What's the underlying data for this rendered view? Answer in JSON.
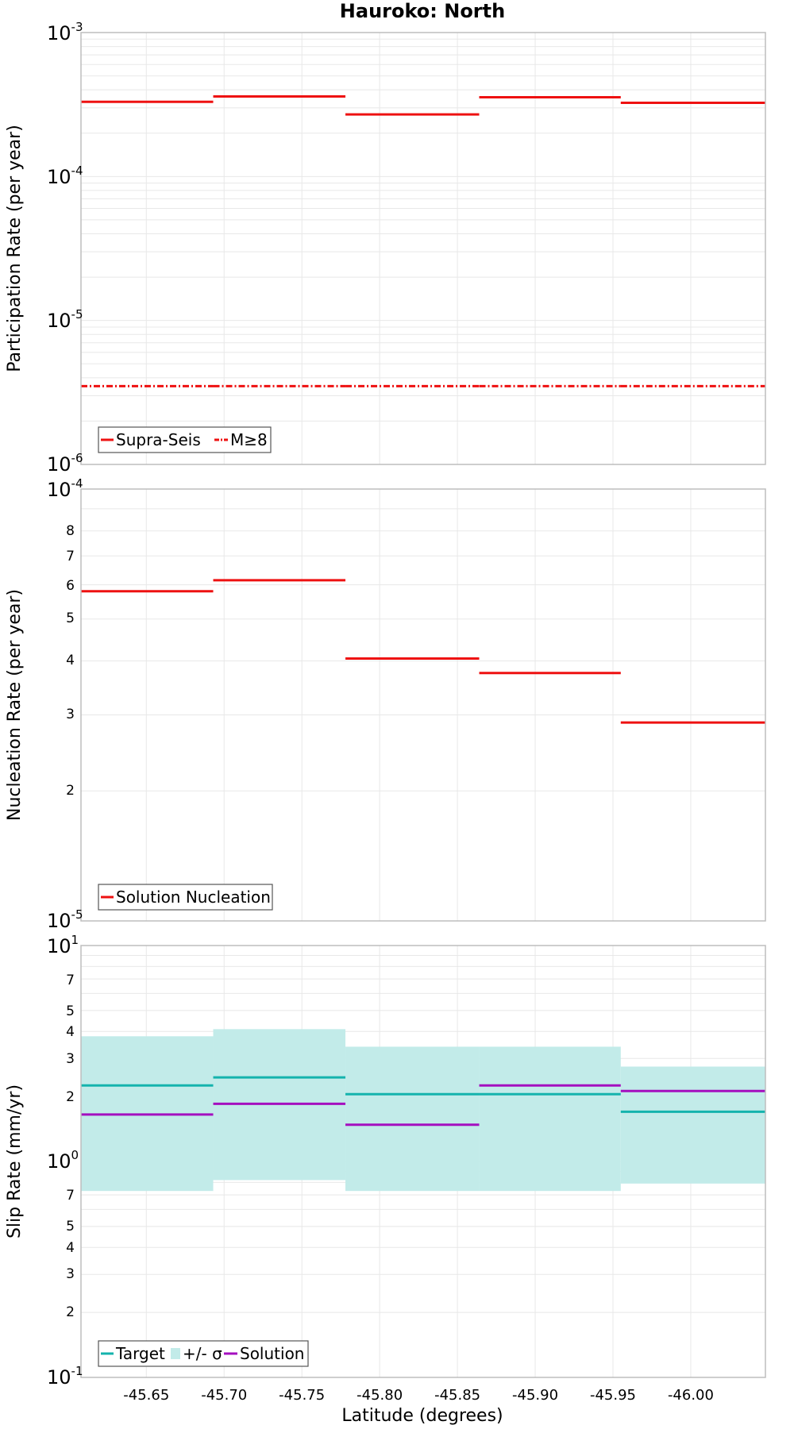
{
  "figure": {
    "title": "Hauroko: North",
    "xlabel": "Latitude (degrees)"
  },
  "colors": {
    "solution_red": "#ee1111",
    "target_teal": "#14b3ad",
    "band_fill": "#c2ebe9",
    "solution_purple": "#a40fbf",
    "grid": "#e8e8e8",
    "frame": "#bdbdbd"
  },
  "chart_data": [
    {
      "type": "line",
      "name": "participation",
      "ylabel": "Participation Rate (per year)",
      "yscale": "log",
      "xlim": [
        -45.608,
        -46.048
      ],
      "ylim": [
        1e-06,
        0.001
      ],
      "grid": true,
      "legend_position": "bottom-left",
      "x_edges": [
        -45.608,
        -45.693,
        -45.778,
        -45.864,
        -45.955,
        -46.048
      ],
      "y_tick_labels": [
        "10-3",
        "10-4",
        "10-5",
        "10-6"
      ],
      "series": [
        {
          "name": "Supra-Seis",
          "style": "solid",
          "values": [
            0.00033,
            0.00036,
            0.00027,
            0.000355,
            0.000325
          ]
        },
        {
          "name": "M≥8",
          "style": "dashdot",
          "values": [
            3.5e-06,
            3.5e-06,
            3.5e-06,
            3.5e-06,
            3.5e-06
          ]
        }
      ]
    },
    {
      "type": "line",
      "name": "nucleation",
      "ylabel": "Nucleation Rate (per year)",
      "yscale": "log",
      "xlim": [
        -45.608,
        -46.048
      ],
      "ylim": [
        1e-05,
        0.0001
      ],
      "grid": true,
      "legend_position": "bottom-left",
      "x_edges": [
        -45.608,
        -45.693,
        -45.778,
        -45.864,
        -45.955,
        -46.048
      ],
      "y_tick_labels": [
        "10-4",
        "8",
        "7",
        "6",
        "5",
        "4",
        "3",
        "2",
        "10-5"
      ],
      "series": [
        {
          "name": "Solution Nucleation",
          "style": "solid",
          "values": [
            5.8e-05,
            6.15e-05,
            4.05e-05,
            3.75e-05,
            2.88e-05
          ]
        }
      ]
    },
    {
      "type": "line",
      "name": "slip-rate",
      "ylabel": "Slip Rate (mm/yr)",
      "xlabel": "Latitude (degrees)",
      "yscale": "log",
      "xlim": [
        -45.608,
        -46.048
      ],
      "ylim": [
        0.1,
        10
      ],
      "grid": true,
      "legend_position": "bottom-left",
      "x_edges": [
        -45.608,
        -45.693,
        -45.778,
        -45.864,
        -45.955,
        -46.048
      ],
      "x_tick_labels": [
        "-45.65",
        "-45.70",
        "-45.75",
        "-45.80",
        "-45.85",
        "-45.90",
        "-45.95",
        "-46.00"
      ],
      "y_tick_labels": [
        "10 1",
        "7",
        "5",
        "4",
        "3",
        "2",
        "10 0",
        "7",
        "5",
        "4",
        "3",
        "2",
        "10-1"
      ],
      "series": [
        {
          "name": "Target",
          "style": "solid",
          "values": [
            2.25,
            2.45,
            2.05,
            2.05,
            1.7
          ]
        },
        {
          "name": "+/- σ",
          "style": "band",
          "upper": [
            3.8,
            4.1,
            3.4,
            3.4,
            2.75
          ],
          "lower": [
            0.73,
            0.82,
            0.73,
            0.73,
            0.79
          ]
        },
        {
          "name": "Solution",
          "style": "solid",
          "values": [
            1.65,
            1.85,
            1.48,
            2.25,
            2.12
          ]
        }
      ]
    }
  ],
  "legends": {
    "participation": {
      "supra": "Supra-Seis",
      "m8": "M≥8"
    },
    "nucleation": {
      "solution": "Solution Nucleation"
    },
    "slip": {
      "target": "Target",
      "sigma": "+/- σ",
      "solution": "Solution"
    }
  }
}
